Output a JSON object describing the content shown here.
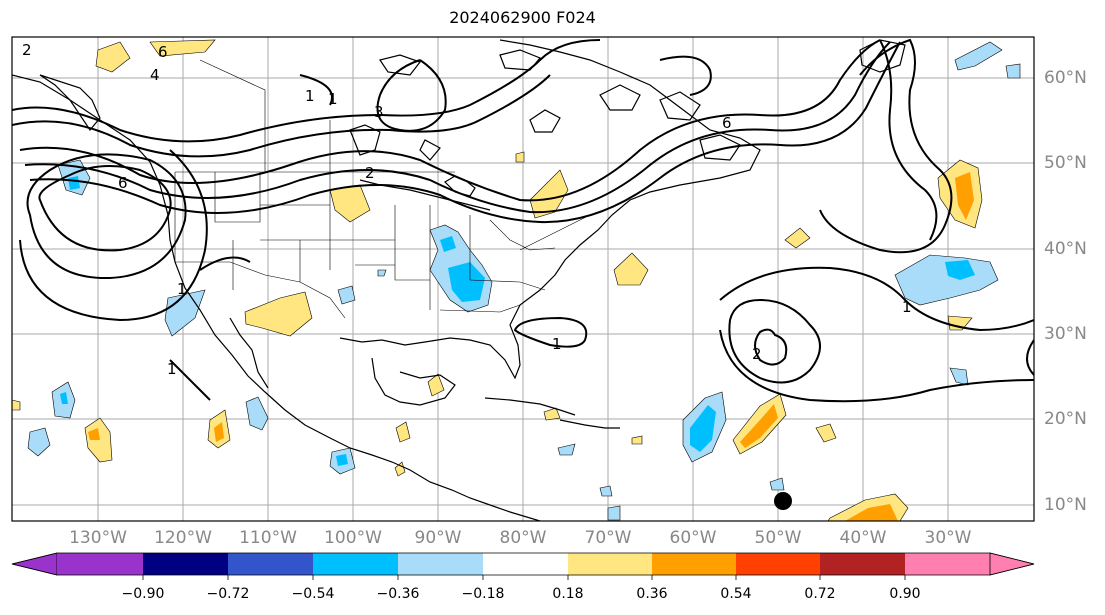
{
  "title": "2024062900 F024",
  "lat_labels": [
    "60°N",
    "50°N",
    "40°N",
    "30°N",
    "20°N",
    "10°N"
  ],
  "lon_labels": [
    "130°W",
    "120°W",
    "110°W",
    "100°W",
    "90°W",
    "80°W",
    "70°W",
    "60°W",
    "50°W",
    "40°W",
    "30°W"
  ],
  "colorbar": {
    "levels": [
      "−0.90",
      "−0.72",
      "−0.54",
      "−0.36",
      "−0.18",
      "0.18",
      "0.36",
      "0.54",
      "0.72",
      "0.90"
    ],
    "colors": [
      "#9933cc",
      "#000080",
      "#3355cc",
      "#00bfff",
      "#a8dcf8",
      "#ffffff",
      "#ffe680",
      "#ffa000",
      "#ff4000",
      "#b22222",
      "#ff80b0"
    ]
  },
  "contour_labels": [
    "1",
    "3",
    "6",
    "4",
    "2",
    "6",
    "1",
    "1",
    "2",
    "1",
    "1",
    "2",
    "6",
    "1"
  ],
  "colors": {
    "warm_fill": "#ffe680",
    "warm_strong": "#ffa000",
    "cool_fill": "#a8dcf8",
    "cool_strong": "#00bfff"
  }
}
